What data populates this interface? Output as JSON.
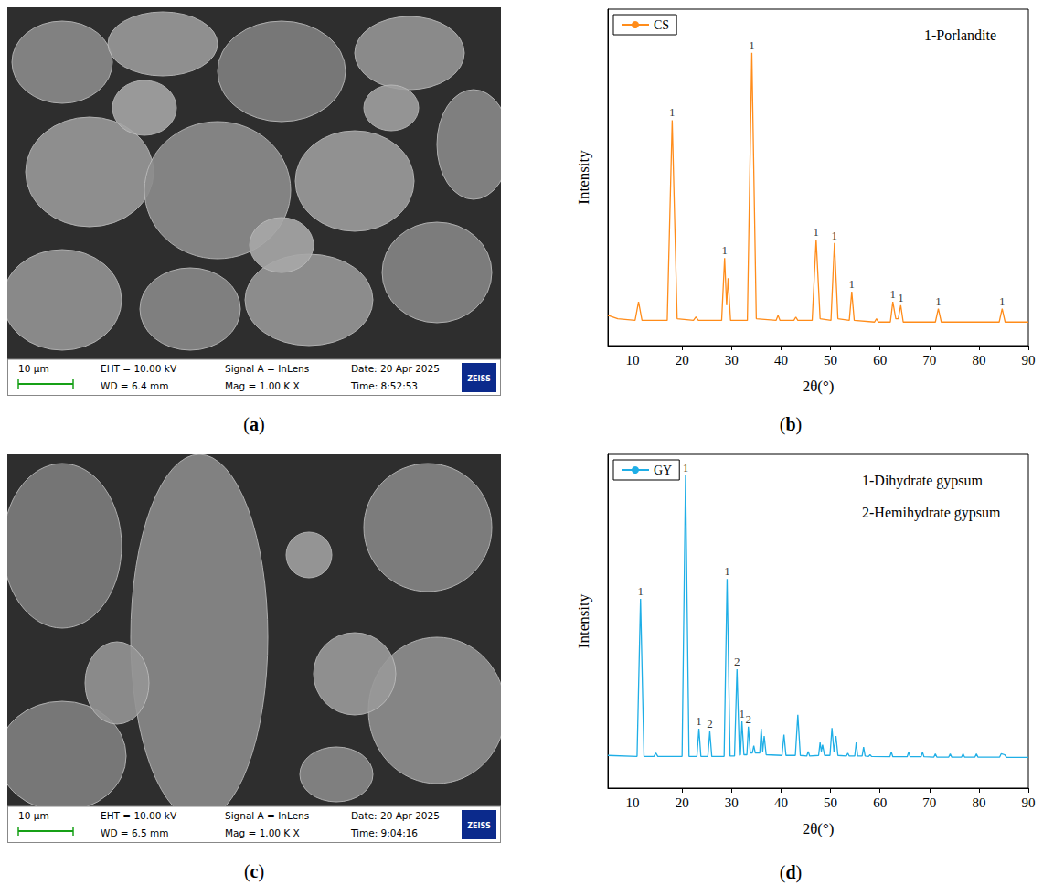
{
  "images": [
    {
      "panel_label": "(a)",
      "info": {
        "scale": "10 μm",
        "eht": "EHT = 10.00 kV",
        "signal": "Signal A = InLens",
        "date": "Date: 20 Apr 2025",
        "wd": "WD = 6.4 mm",
        "mag": "Mag = 1.00 K X",
        "time": "Time: 8:52:53",
        "logo": "ZEISS"
      }
    },
    {
      "panel_label": "(c)",
      "info": {
        "scale": "10 μm",
        "eht": "EHT = 10.00 kV",
        "signal": "Signal A = InLens",
        "date": "Date: 20 Apr 2025",
        "wd": "WD = 6.5 mm",
        "mag": "Mag = 1.00 K X",
        "time": "Time: 9:04:16",
        "logo": "ZEISS"
      }
    }
  ],
  "chart_data": [
    {
      "type": "line",
      "panel_label": "(b)",
      "x_label": "2θ(°)",
      "y_label": "Intensity",
      "x": [
        5,
        7,
        10.5,
        11.2,
        11.9,
        17,
        18,
        19,
        22.3,
        22.8,
        23.3,
        28,
        28.6,
        29,
        29.3,
        29.8,
        33.2,
        34.1,
        35,
        39,
        39.4,
        39.8,
        42.6,
        43,
        43.4,
        46.3,
        47.1,
        47.9,
        50.1,
        50.8,
        51.5,
        53.8,
        54.3,
        54.8,
        58.9,
        59.3,
        59.7,
        62.1,
        62.6,
        63.2,
        63.7,
        64.2,
        64.7,
        71.2,
        71.8,
        72.4,
        84.1,
        84.7,
        85.3,
        90
      ],
      "series": [
        {
          "name": "CS",
          "color": "#ff8c1a",
          "values": [
            9,
            8,
            7.5,
            13,
            7.5,
            7.5,
            67,
            8,
            7.5,
            8.5,
            7.5,
            7.5,
            26,
            12,
            20,
            7.5,
            7.5,
            87,
            8,
            7.5,
            9,
            7.5,
            7.5,
            8.5,
            7.5,
            7.5,
            31.5,
            8,
            7.5,
            30.5,
            8,
            7.5,
            16,
            7.5,
            7,
            8,
            7,
            7,
            13,
            8,
            8,
            12,
            7,
            7,
            11,
            7,
            7,
            11,
            7,
            7
          ]
        }
      ],
      "xlim": [
        5,
        90
      ],
      "xticks": [
        10,
        20,
        30,
        40,
        50,
        60,
        70,
        80,
        90
      ],
      "ylim": [
        0,
        100
      ],
      "tick_labels": "x",
      "grid": false,
      "legend": "upper left",
      "phases": [
        "1-Porlandite"
      ],
      "annotations": [
        {
          "x": 18,
          "y": 67,
          "text": "1"
        },
        {
          "x": 28.6,
          "y": 26,
          "text": "1"
        },
        {
          "x": 34.1,
          "y": 87,
          "text": "1"
        },
        {
          "x": 47.1,
          "y": 31.5,
          "text": "1"
        },
        {
          "x": 50.8,
          "y": 30.5,
          "text": "1"
        },
        {
          "x": 54.3,
          "y": 16,
          "text": "1"
        },
        {
          "x": 62.6,
          "y": 13,
          "text": "1"
        },
        {
          "x": 64.2,
          "y": 12,
          "text": "1"
        },
        {
          "x": 71.8,
          "y": 11,
          "text": "1"
        },
        {
          "x": 84.7,
          "y": 11,
          "text": "1"
        }
      ]
    },
    {
      "type": "line",
      "panel_label": "(d)",
      "x_label": "2θ(°)",
      "y_label": "Intensity",
      "x": [
        5,
        10.9,
        11.6,
        12.3,
        14.3,
        14.7,
        15.1,
        20.0,
        20.7,
        21.4,
        23.0,
        23.4,
        23.8,
        25.2,
        25.6,
        26.0,
        28.5,
        29.1,
        29.7,
        30.6,
        31.1,
        31.6,
        31.8,
        32.1,
        32.5,
        33.1,
        33.4,
        33.8,
        34.2,
        34.5,
        34.8,
        35.7,
        36.0,
        36.3,
        36.6,
        37.0,
        40.2,
        40.6,
        41.0,
        42.9,
        43.4,
        43.9,
        45.2,
        45.5,
        45.8,
        47.6,
        47.9,
        48.15,
        48.4,
        48.8,
        49.9,
        50.3,
        50.7,
        51.1,
        51.5,
        53.2,
        53.5,
        53.8,
        54.9,
        55.2,
        55.5,
        56.4,
        56.7,
        57.0,
        57.7,
        58.0,
        58.3,
        62.0,
        62.3,
        62.6,
        65.5,
        65.8,
        66.1,
        68.3,
        68.6,
        68.9,
        70.9,
        71.2,
        71.5,
        73.9,
        74.2,
        74.5,
        76.5,
        76.8,
        77.1,
        79.2,
        79.5,
        79.8,
        84.2,
        84.5,
        85.2,
        85.6,
        90
      ],
      "series": [
        {
          "name": "GY",
          "color": "#1eaee6",
          "values": [
            9.8,
            9.5,
            56.7,
            9.5,
            9.5,
            10.5,
            9.5,
            9.5,
            93.7,
            9.5,
            9.5,
            17.8,
            9.5,
            9.5,
            17,
            9.5,
            9.5,
            62.7,
            9.6,
            9.6,
            35.6,
            9.8,
            10,
            20,
            10,
            10,
            18.4,
            10.5,
            10.5,
            12.7,
            10.5,
            10.5,
            17.8,
            11,
            15.6,
            10,
            9.8,
            16,
            9.8,
            9.8,
            22,
            9.8,
            9.6,
            11,
            9.6,
            9.8,
            13.7,
            11,
            13,
            9.8,
            9.8,
            18,
            11,
            15.6,
            9.8,
            9.6,
            10.5,
            9.6,
            9.6,
            13.7,
            9.6,
            9.6,
            12.3,
            9.6,
            9.5,
            10,
            9.5,
            9.4,
            10.8,
            9.4,
            9.4,
            10.8,
            9.4,
            9.4,
            10.8,
            9.4,
            9.3,
            10.3,
            9.3,
            9.3,
            10.3,
            9.3,
            9.3,
            10.3,
            9.3,
            9.3,
            10.3,
            9.3,
            9.3,
            10.3,
            10,
            9.2,
            9.2
          ]
        }
      ],
      "xlim": [
        5,
        90
      ],
      "xticks": [
        10,
        20,
        30,
        40,
        50,
        60,
        70,
        80,
        90
      ],
      "ylim": [
        0,
        100
      ],
      "tick_labels": "x",
      "grid": false,
      "legend": "upper left",
      "phases": [
        "1-Dihydrate gypsum",
        "2-Hemihydrate gypsum"
      ],
      "annotations": [
        {
          "x": 11.6,
          "y": 56.7,
          "text": "1"
        },
        {
          "x": 20.7,
          "y": 93.7,
          "text": "1"
        },
        {
          "x": 23.4,
          "y": 17.8,
          "text": "1"
        },
        {
          "x": 25.6,
          "y": 17,
          "text": "2"
        },
        {
          "x": 29.1,
          "y": 62.7,
          "text": "1"
        },
        {
          "x": 31.1,
          "y": 35.6,
          "text": "2"
        },
        {
          "x": 32.1,
          "y": 20,
          "text": "1"
        },
        {
          "x": 33.4,
          "y": 18.4,
          "text": "2"
        }
      ]
    }
  ]
}
